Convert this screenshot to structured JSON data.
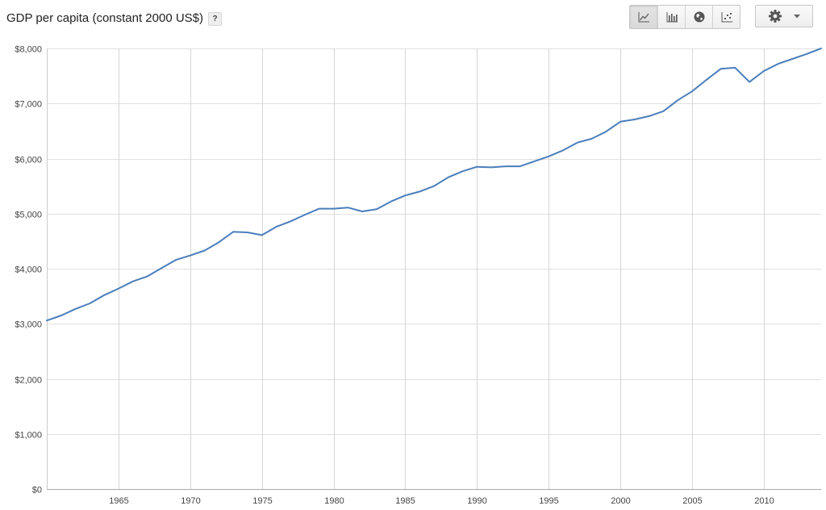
{
  "header": {
    "title": "GDP per capita (constant 2000 US$)",
    "help_label": "?",
    "chart_types": [
      {
        "name": "line-chart-icon",
        "active": true
      },
      {
        "name": "bar-chart-icon",
        "active": false
      },
      {
        "name": "map-icon",
        "active": false
      },
      {
        "name": "scatter-icon",
        "active": false
      }
    ],
    "settings_icon": "gear-icon",
    "dropdown_icon": "caret-down-icon"
  },
  "chart_data": {
    "type": "line",
    "title": "GDP per capita (constant 2000 US$)",
    "xlabel": "",
    "ylabel": "",
    "xlim": [
      1960,
      2014
    ],
    "ylim": [
      0,
      8000
    ],
    "grid": true,
    "line_color": "#4a7ebb",
    "x_ticks": [
      1965,
      1970,
      1975,
      1980,
      1985,
      1990,
      1995,
      2000,
      2005,
      2010
    ],
    "y_ticks": [
      0,
      1000,
      2000,
      3000,
      4000,
      5000,
      6000,
      7000,
      8000
    ],
    "y_tick_labels": [
      "$0",
      "$1,000",
      "$2,000",
      "$3,000",
      "$4,000",
      "$5,000",
      "$6,000",
      "$7,000",
      "$8,000"
    ],
    "x": [
      1960,
      1961,
      1962,
      1963,
      1964,
      1965,
      1966,
      1967,
      1968,
      1969,
      1970,
      1971,
      1972,
      1973,
      1974,
      1975,
      1976,
      1977,
      1978,
      1979,
      1980,
      1981,
      1982,
      1983,
      1984,
      1985,
      1986,
      1987,
      1988,
      1989,
      1990,
      1991,
      1992,
      1993,
      1994,
      1995,
      1996,
      1997,
      1998,
      1999,
      2000,
      2001,
      2002,
      2003,
      2004,
      2005,
      2006,
      2007,
      2008,
      2009,
      2010,
      2011,
      2012,
      2013,
      2014
    ],
    "y": [
      3060,
      3150,
      3270,
      3370,
      3520,
      3640,
      3770,
      3860,
      4010,
      4160,
      4240,
      4330,
      4480,
      4670,
      4660,
      4610,
      4760,
      4860,
      4980,
      5090,
      5090,
      5110,
      5040,
      5080,
      5220,
      5330,
      5400,
      5500,
      5660,
      5770,
      5850,
      5840,
      5860,
      5860,
      5950,
      6040,
      6150,
      6290,
      6360,
      6490,
      6670,
      6710,
      6770,
      6860,
      7060,
      7220,
      7430,
      7630,
      7650,
      7390,
      7590,
      7720,
      7810,
      7900,
      8000
    ]
  }
}
